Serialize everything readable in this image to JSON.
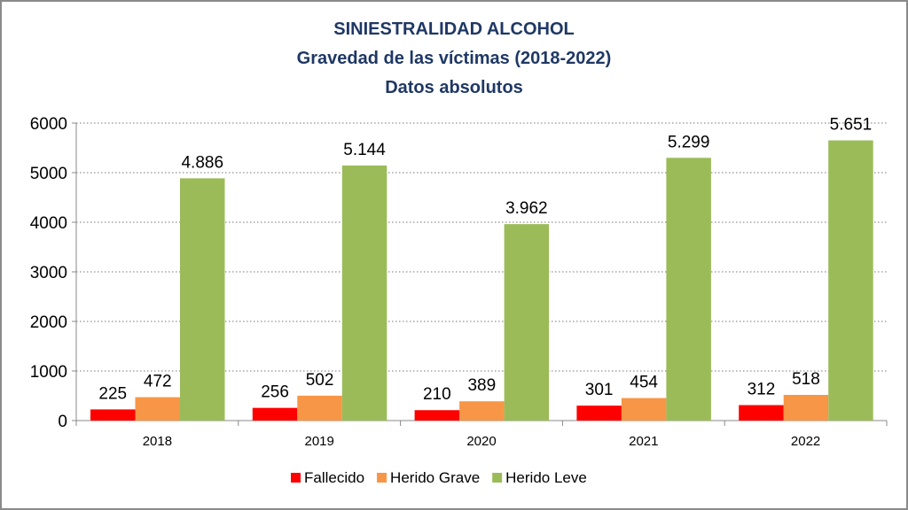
{
  "chart_data": {
    "type": "bar",
    "title": "SINIESTRALIDAD ALCOHOL",
    "subtitle": "Gravedad de las víctimas (2018-2022)",
    "subtitle2": "Datos absolutos",
    "categories": [
      "2018",
      "2019",
      "2020",
      "2021",
      "2022"
    ],
    "series": [
      {
        "name": "Fallecido",
        "color": "#ff0000",
        "values": [
          225,
          256,
          210,
          301,
          312
        ],
        "labels": [
          "225",
          "256",
          "210",
          "301",
          "312"
        ]
      },
      {
        "name": "Herido Grave",
        "color": "#f79646",
        "values": [
          472,
          502,
          389,
          454,
          518
        ],
        "labels": [
          "472",
          "502",
          "389",
          "454",
          "518"
        ]
      },
      {
        "name": "Herido Leve",
        "color": "#9bbb59",
        "values": [
          4886,
          5144,
          3962,
          5299,
          5651
        ],
        "labels": [
          "4.886",
          "5.144",
          "3.962",
          "5.299",
          "5.651"
        ]
      }
    ],
    "ylim": [
      0,
      6000
    ],
    "yticks": [
      0,
      1000,
      2000,
      3000,
      4000,
      5000,
      6000
    ],
    "grid": true,
    "legend_position": "bottom"
  }
}
